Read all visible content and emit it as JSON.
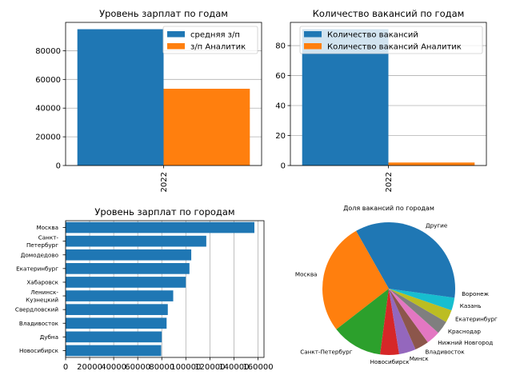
{
  "chart_data": [
    {
      "type": "bar",
      "title": "Уровень зарплат по годам",
      "categories": [
        "2022"
      ],
      "series": [
        {
          "name": "средняя з/п",
          "values": [
            95000
          ],
          "color": "#1f77b4"
        },
        {
          "name": "з/п Аналитик",
          "values": [
            53500
          ],
          "color": "#ff7f0e"
        }
      ],
      "yticks": [
        "0",
        "20000",
        "40000",
        "60000",
        "80000"
      ],
      "ylim": [
        0,
        99750
      ],
      "grid": "y",
      "legend": "top-right"
    },
    {
      "type": "bar",
      "title": "Количество вакансий по годам",
      "categories": [
        "2022"
      ],
      "series": [
        {
          "name": "Количество вакансий",
          "values": [
            91
          ],
          "color": "#1f77b4"
        },
        {
          "name": "Количество вакансий Аналитик",
          "values": [
            2
          ],
          "color": "#ff7f0e"
        }
      ],
      "yticks": [
        "0",
        "20",
        "40",
        "60",
        "80"
      ],
      "ylim": [
        0,
        95.5
      ],
      "grid": "y",
      "legend": "top-left"
    },
    {
      "type": "bar",
      "orientation": "horizontal",
      "title": "Уровень зарплат по городам",
      "categories": [
        "Москва",
        "Санкт-Петербург",
        "Домодедово",
        "Екатеринбург",
        "Хабаровск",
        "Ленинск-Кузнецкий",
        "Свердловский",
        "Владивосток",
        "Дубна",
        "Новосибирск"
      ],
      "category_labels": [
        [
          "Москва"
        ],
        [
          "Санкт-",
          "Петербург"
        ],
        [
          "Домодедово"
        ],
        [
          "Екатеринбург"
        ],
        [
          "Хабаровск"
        ],
        [
          "Ленинск-",
          "Кузнецкий"
        ],
        [
          "Свердловский"
        ],
        [
          "Владивосток"
        ],
        [
          "Дубна"
        ],
        [
          "Новосибирск"
        ]
      ],
      "values": [
        157000,
        117000,
        104500,
        103000,
        100000,
        89500,
        85000,
        84000,
        80000,
        79500
      ],
      "color": "#1f77b4",
      "xticks": [
        "0",
        "20000",
        "40000",
        "60000",
        "80000",
        "100000",
        "120000",
        "140000",
        "160000"
      ],
      "xlim": [
        0,
        165000
      ],
      "grid": "x"
    },
    {
      "type": "pie",
      "title": "Доля вакансий по городам",
      "labels": [
        "Другие",
        "Москва",
        "Санкт-Петербург",
        "Новосибирск",
        "Минск",
        "Владивосток",
        "Нижний Новгород",
        "Краснодар",
        "Екатеринбург",
        "Казань",
        "Воронеж"
      ],
      "values": [
        33.2,
        27.3,
        12.4,
        4.6,
        4.1,
        3.4,
        3.4,
        3.2,
        3.1,
        3.1,
        2.2
      ],
      "colors": [
        "#1f77b4",
        "#ff7f0e",
        "#2ca02c",
        "#d62728",
        "#9467bd",
        "#8c564b",
        "#e377c2",
        "#7f7f7f",
        "#bcbd22",
        "#17becf",
        "#1f77b4"
      ]
    }
  ]
}
